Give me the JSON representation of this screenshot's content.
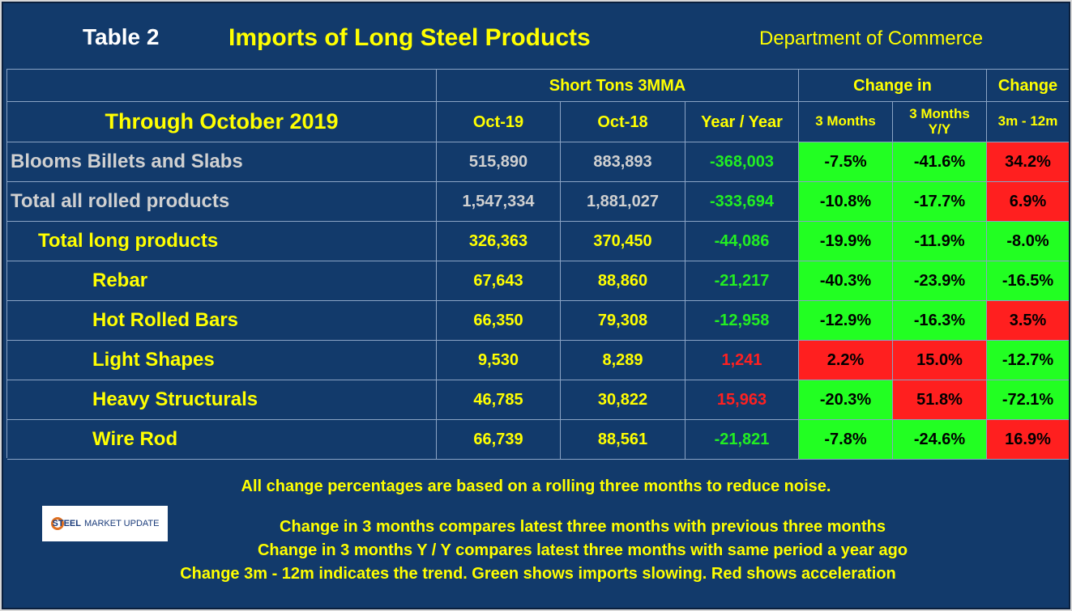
{
  "header": {
    "table_label": "Table 2",
    "title": "Imports of Long Steel Products",
    "source": "Department of Commerce"
  },
  "table": {
    "group_headers": [
      "Short Tons 3MMA",
      "Change in",
      "Change"
    ],
    "period": "Through October 2019",
    "columns": [
      "Oct-19",
      "Oct-18",
      "Year / Year",
      "3 Months",
      "3 Months\nY/Y",
      "3m - 12m"
    ],
    "rows": [
      {
        "label": "Blooms Billets and Slabs",
        "cells": [
          "515,890",
          "883,893",
          "-368,003",
          "-7.5%",
          "-41.6%",
          "34.2%"
        ]
      },
      {
        "label": "Total all rolled products",
        "cells": [
          "1,547,334",
          "1,881,027",
          "-333,694",
          "-10.8%",
          "-17.7%",
          "6.9%"
        ]
      },
      {
        "label": "Total long products",
        "cells": [
          "326,363",
          "370,450",
          "-44,086",
          "-19.9%",
          "-11.9%",
          "-8.0%"
        ]
      },
      {
        "label": "Rebar",
        "cells": [
          "67,643",
          "88,860",
          "-21,217",
          "-40.3%",
          "-23.9%",
          "-16.5%"
        ]
      },
      {
        "label": "Hot Rolled Bars",
        "cells": [
          "66,350",
          "79,308",
          "-12,958",
          "-12.9%",
          "-16.3%",
          "3.5%"
        ]
      },
      {
        "label": "Light Shapes",
        "cells": [
          "9,530",
          "8,289",
          "1,241",
          "2.2%",
          "15.0%",
          "-12.7%"
        ]
      },
      {
        "label": "Heavy Structurals",
        "cells": [
          "46,785",
          "30,822",
          "15,963",
          "-20.3%",
          "51.8%",
          "-72.1%"
        ]
      },
      {
        "label": "Wire Rod",
        "cells": [
          "66,739",
          "88,561",
          "-21,821",
          "-7.8%",
          "-24.6%",
          "16.9%"
        ]
      }
    ]
  },
  "notes": [
    "All change percentages are based on a rolling three months to reduce noise.",
    "Change in 3 months compares latest three months with previous three months",
    "Change in 3 months  Y / Y compares latest three months with same period a year ago",
    "Change 3m - 12m indicates the trend. Green shows imports slowing. Red shows acceleration"
  ],
  "logo": [
    "STEEL",
    "MARKET UPDATE"
  ]
}
